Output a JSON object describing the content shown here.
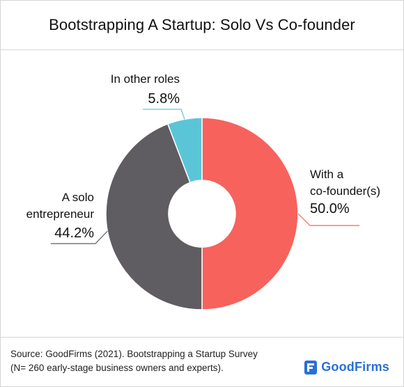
{
  "chart_data": {
    "type": "pie",
    "title": "Bootstrapping A Startup: Solo Vs Co-founder",
    "donut": true,
    "slices": [
      {
        "label_lines": [
          "With a",
          "co-founder(s)"
        ],
        "value": 50.0,
        "value_label": "50.0%",
        "color": "#f7625d"
      },
      {
        "label_lines": [
          "A solo",
          "entrepreneur"
        ],
        "value": 44.2,
        "value_label": "44.2%",
        "color": "#5f5c62"
      },
      {
        "label_lines": [
          "In other roles"
        ],
        "value": 5.8,
        "value_label": "5.8%",
        "color": "#5bc5d8"
      }
    ]
  },
  "footer": {
    "source_line1": "Source: GoodFirms (2021). Bootstrapping a Startup Survey",
    "source_line2": "(N= 260 early-stage business owners and experts).",
    "brand": "GoodFirms"
  },
  "colors": {
    "brand": "#2a6fd6",
    "border": "#d6d6d6"
  }
}
